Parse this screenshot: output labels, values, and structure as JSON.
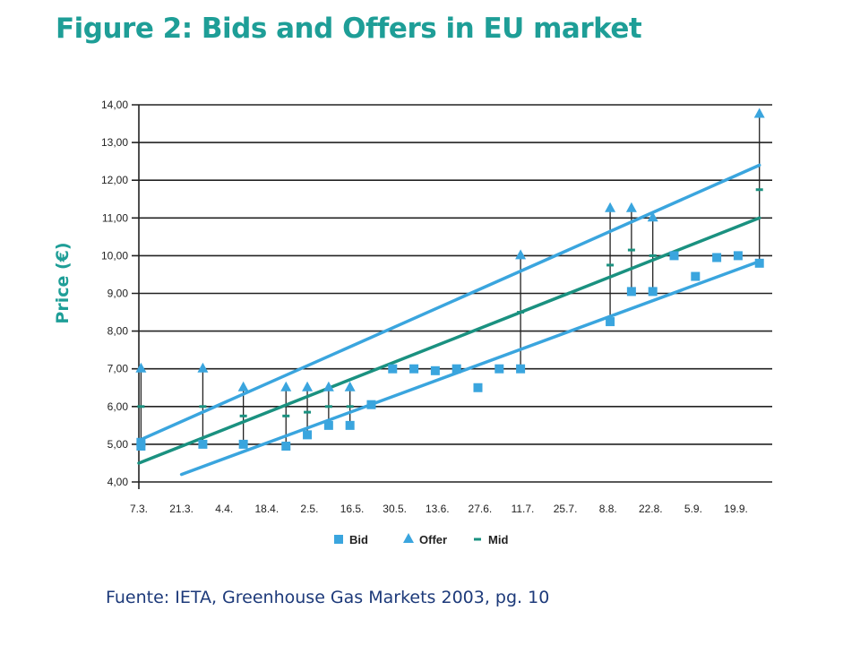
{
  "title": "Figure 2: Bids and Offers in EU market",
  "source": "Fuente: IETA, Greenhouse Gas Markets 2003, pg. 10",
  "chart_data": {
    "type": "scatter",
    "title": "Figure 2: Bids and Offers in EU market",
    "ylabel": "Price (€)",
    "xlabel": "",
    "ylim": [
      4,
      14
    ],
    "yticks": [
      "4,00",
      "5,00",
      "6,00",
      "7,00",
      "8,00",
      "9,00",
      "10,00",
      "11,00",
      "12,00",
      "13,00",
      "14,00"
    ],
    "xticks": [
      "7.3.",
      "21.3.",
      "4.4.",
      "18.4.",
      "2.5.",
      "16.5.",
      "30.5.",
      "13.6.",
      "27.6.",
      "11.7.",
      "25.7.",
      "8.8.",
      "22.8.",
      "5.9.",
      "19.9."
    ],
    "x_range": [
      0,
      14.85
    ],
    "grid": "horizontal",
    "legend_position": "bottom",
    "colors": {
      "bid": "#3aa5de",
      "offer": "#3aa5de",
      "mid": "#1a9180",
      "grid": "#222222"
    },
    "series": [
      {
        "name": "Bid",
        "marker": "square",
        "points": [
          [
            0.05,
            4.95
          ],
          [
            0.05,
            5.05
          ],
          [
            1.5,
            5.0
          ],
          [
            2.45,
            5.0
          ],
          [
            3.45,
            4.95
          ],
          [
            3.95,
            5.25
          ],
          [
            4.45,
            5.5
          ],
          [
            4.95,
            5.5
          ],
          [
            5.45,
            6.05
          ],
          [
            5.95,
            7.0
          ],
          [
            6.45,
            7.0
          ],
          [
            6.95,
            6.95
          ],
          [
            7.45,
            7.0
          ],
          [
            7.95,
            6.5
          ],
          [
            8.45,
            7.0
          ],
          [
            8.95,
            7.0
          ],
          [
            11.05,
            8.25
          ],
          [
            11.55,
            9.05
          ],
          [
            12.05,
            9.05
          ],
          [
            12.55,
            10.0
          ],
          [
            13.05,
            9.45
          ],
          [
            13.55,
            9.95
          ],
          [
            14.05,
            10.0
          ],
          [
            14.55,
            9.8
          ]
        ]
      },
      {
        "name": "Offer",
        "marker": "triangle",
        "points": [
          [
            0.05,
            7.0
          ],
          [
            1.5,
            7.0
          ],
          [
            2.45,
            6.5
          ],
          [
            3.45,
            6.5
          ],
          [
            3.95,
            6.5
          ],
          [
            4.45,
            6.5
          ],
          [
            4.95,
            6.5
          ],
          [
            8.95,
            10.0
          ],
          [
            11.05,
            11.25
          ],
          [
            11.55,
            11.25
          ],
          [
            12.05,
            11.0
          ],
          [
            14.55,
            13.75
          ]
        ]
      },
      {
        "name": "Mid",
        "marker": "dash",
        "points": [
          [
            0.05,
            6.0
          ],
          [
            1.5,
            6.0
          ],
          [
            2.45,
            5.75
          ],
          [
            3.45,
            5.75
          ],
          [
            3.95,
            5.85
          ],
          [
            4.45,
            6.0
          ],
          [
            4.95,
            6.0
          ],
          [
            8.95,
            8.5
          ],
          [
            11.05,
            9.75
          ],
          [
            11.55,
            10.15
          ],
          [
            12.05,
            10.0
          ],
          [
            14.55,
            11.75
          ]
        ]
      }
    ],
    "ranges": [
      [
        0.05,
        5.0,
        7.0
      ],
      [
        1.5,
        5.0,
        7.0
      ],
      [
        2.45,
        5.0,
        6.5
      ],
      [
        3.45,
        4.95,
        6.5
      ],
      [
        3.95,
        5.25,
        6.5
      ],
      [
        4.45,
        5.5,
        6.5
      ],
      [
        4.95,
        5.5,
        6.5
      ],
      [
        8.95,
        7.0,
        10.0
      ],
      [
        11.05,
        8.25,
        11.25
      ],
      [
        11.55,
        9.05,
        11.25
      ],
      [
        12.05,
        9.05,
        11.0
      ],
      [
        14.55,
        9.8,
        13.75
      ]
    ],
    "trendlines": [
      {
        "series": "Offer",
        "from": [
          0,
          5.1
        ],
        "to": [
          14.55,
          12.4
        ]
      },
      {
        "series": "Mid",
        "from": [
          0,
          4.5
        ],
        "to": [
          14.55,
          11.0
        ]
      },
      {
        "series": "Bid",
        "from": [
          1,
          4.2
        ],
        "to": [
          14.55,
          9.85
        ]
      }
    ]
  }
}
